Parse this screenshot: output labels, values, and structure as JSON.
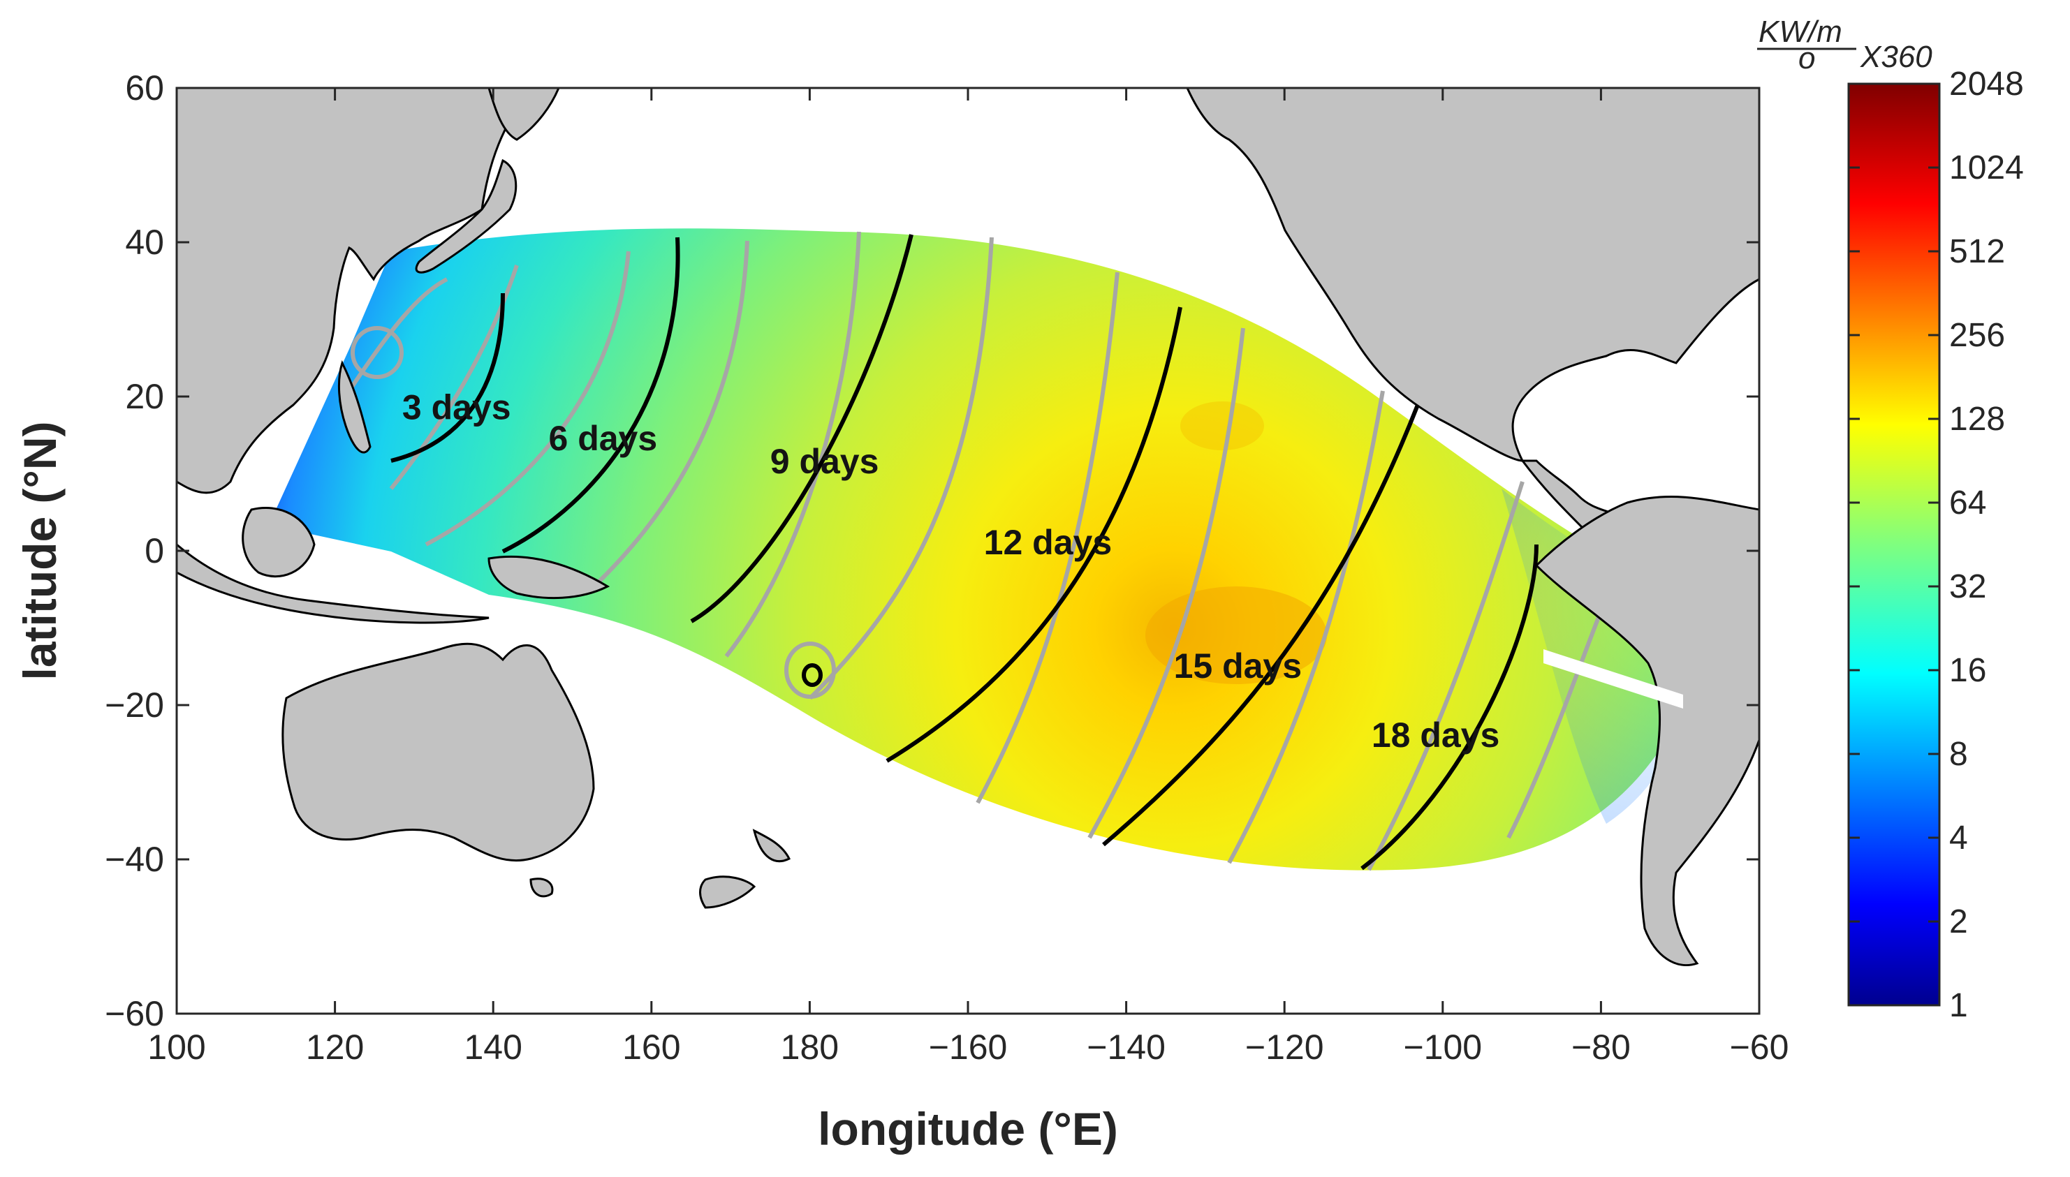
{
  "chart_data": {
    "type": "heatmap",
    "title": "",
    "xlabel": "longitude (°E)",
    "ylabel": "latitude (°N)",
    "xlim": [
      100,
      300
    ],
    "ylim": [
      -60,
      60
    ],
    "x_ticks": [
      {
        "value": 100,
        "label": "100"
      },
      {
        "value": 120,
        "label": "120"
      },
      {
        "value": 140,
        "label": "140"
      },
      {
        "value": 160,
        "label": "160"
      },
      {
        "value": 180,
        "label": "180"
      },
      {
        "value": 200,
        "label": "−160"
      },
      {
        "value": 220,
        "label": "−140"
      },
      {
        "value": 240,
        "label": "−120"
      },
      {
        "value": 260,
        "label": "−100"
      },
      {
        "value": 280,
        "label": "−80"
      },
      {
        "value": 300,
        "label": "−60"
      }
    ],
    "y_ticks": [
      {
        "value": 60,
        "label": "60"
      },
      {
        "value": 40,
        "label": "40"
      },
      {
        "value": 20,
        "label": "20"
      },
      {
        "value": 0,
        "label": "0"
      },
      {
        "value": -20,
        "label": "−20"
      },
      {
        "value": -40,
        "label": "−40"
      },
      {
        "value": -60,
        "label": "−60"
      }
    ],
    "grid": false,
    "colorbar": {
      "scale": "log2",
      "ticks": [
        "1",
        "2",
        "4",
        "8",
        "16",
        "32",
        "64",
        "128",
        "256",
        "512",
        "1024",
        "2048"
      ],
      "unit_numerator": "KW/m",
      "unit_denominator": "o",
      "unit_suffix": "X360",
      "colormap": "jet"
    },
    "travel_time_labels": [
      {
        "text": "3 days",
        "lon": 128.5,
        "lat": 18.5
      },
      {
        "text": "6 days",
        "lon": 147,
        "lat": 14.5
      },
      {
        "text": "9 days",
        "lon": 175,
        "lat": 11.5
      },
      {
        "text": "12 days",
        "lon": 202,
        "lat": 1
      },
      {
        "text": "15 days",
        "lon": 226,
        "lat": -15
      },
      {
        "text": "18 days",
        "lon": 251,
        "lat": -24
      }
    ],
    "energy_peak": {
      "lon": 235,
      "lat": -12
    },
    "source": {
      "lon": 125,
      "lat": 24
    }
  }
}
